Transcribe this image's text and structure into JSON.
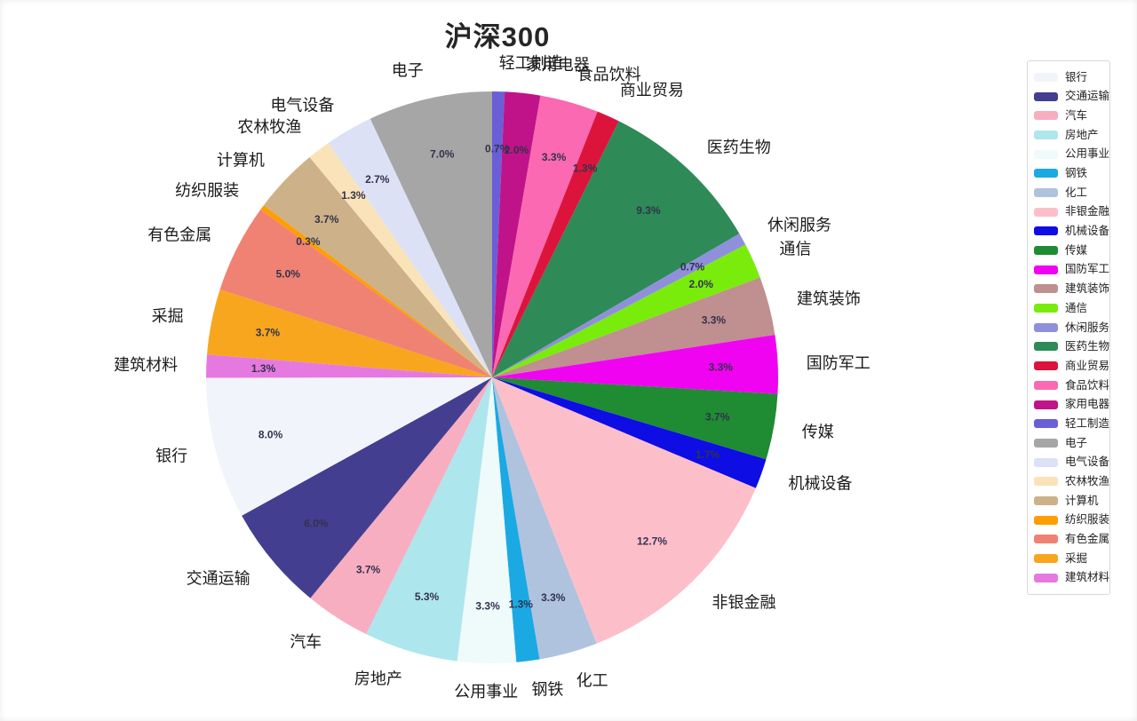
{
  "chart_data": {
    "type": "pie",
    "title": "沪深300",
    "unit": "%",
    "legend_position": "right",
    "direction": "clockwise-from-top",
    "start_sector": "轻工制造",
    "percent_label_distance": 0.8,
    "name_label_distance": 1.1,
    "sectors": [
      {
        "label": "银行",
        "value": 8.0,
        "color": "#f2f4fb"
      },
      {
        "label": "交通运输",
        "value": 6.0,
        "color": "#443e90"
      },
      {
        "label": "汽车",
        "value": 3.7,
        "color": "#f7aec0"
      },
      {
        "label": "房地产",
        "value": 5.3,
        "color": "#aee6ee"
      },
      {
        "label": "公用事业",
        "value": 3.3,
        "color": "#effafa"
      },
      {
        "label": "钢铁",
        "value": 1.3,
        "color": "#1ba9e4"
      },
      {
        "label": "化工",
        "value": 3.3,
        "color": "#afc3de"
      },
      {
        "label": "非银金融",
        "value": 12.7,
        "color": "#fcbfca"
      },
      {
        "label": "机械设备",
        "value": 1.7,
        "color": "#0d0de4"
      },
      {
        "label": "传媒",
        "value": 3.7,
        "color": "#1f8b33"
      },
      {
        "label": "国防军工",
        "value": 3.3,
        "color": "#f003f0"
      },
      {
        "label": "建筑装饰",
        "value": 3.3,
        "color": "#c08f8f"
      },
      {
        "label": "通信",
        "value": 2.0,
        "color": "#79ec0c"
      },
      {
        "label": "休闲服务",
        "value": 0.7,
        "color": "#8f8fdc"
      },
      {
        "label": "医药生物",
        "value": 9.3,
        "color": "#2e8b57"
      },
      {
        "label": "商业贸易",
        "value": 1.3,
        "color": "#dc143c"
      },
      {
        "label": "食品饮料",
        "value": 3.3,
        "color": "#fa69b1"
      },
      {
        "label": "家用电器",
        "value": 2.0,
        "color": "#c01389"
      },
      {
        "label": "轻工制造",
        "value": 0.7,
        "color": "#6a5fd6"
      },
      {
        "label": "电子",
        "value": 7.0,
        "color": "#a6a6a6"
      },
      {
        "label": "电气设备",
        "value": 2.7,
        "color": "#dce1f5"
      },
      {
        "label": "农林牧渔",
        "value": 1.3,
        "color": "#fae3b9"
      },
      {
        "label": "计算机",
        "value": 3.7,
        "color": "#cdb188"
      },
      {
        "label": "纺织服装",
        "value": 0.3,
        "color": "#ff9e00"
      },
      {
        "label": "有色金属",
        "value": 5.0,
        "color": "#f08273"
      },
      {
        "label": "采掘",
        "value": 3.7,
        "color": "#f8a61e"
      },
      {
        "label": "建筑材料",
        "value": 1.3,
        "color": "#e679e0"
      }
    ]
  },
  "colors": {
    "background": "#ffffff",
    "title_text": "#262626",
    "sector_label_text": "#1b1b1b",
    "percent_label_text": "#32324e",
    "legend_border": "#d8d8d8",
    "legend_bg": "#ffffff",
    "legend_text": "#1e1e1e"
  }
}
